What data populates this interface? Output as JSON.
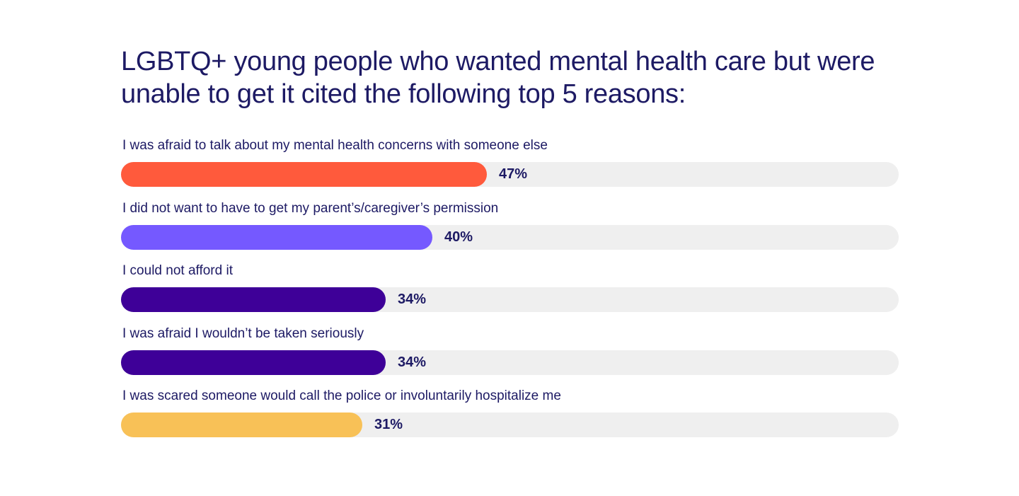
{
  "chart_data": {
    "type": "bar",
    "orientation": "horizontal",
    "title": "LGBTQ+ young people who wanted mental health care but were unable to get it cited the following top 5 reasons:",
    "categories": [
      "I was afraid to talk about my mental health concerns with someone else",
      "I did not want to have to get my parent’s/caregiver’s permission",
      "I could not afford it",
      "I was afraid I wouldn’t be taken seriously",
      "I was scared someone would call the police or involuntarily hospitalize me"
    ],
    "values": [
      47,
      40,
      34,
      34,
      31
    ],
    "value_labels": [
      "47%",
      "40%",
      "34%",
      "34%",
      "31%"
    ],
    "colors": [
      "#ff5a3c",
      "#7559ff",
      "#3e0098",
      "#3e0098",
      "#f8c157"
    ],
    "xlim": [
      0,
      100
    ],
    "unit": "%",
    "grid": false,
    "legend": "none"
  },
  "colors": {
    "title_text": "#1d1a64",
    "track": "#efefef"
  }
}
